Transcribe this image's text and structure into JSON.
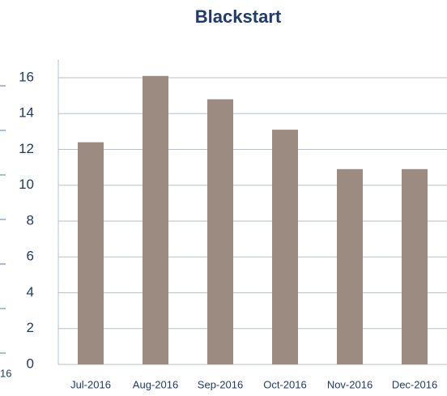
{
  "chart_data": {
    "type": "bar",
    "title": "Blackstart",
    "categories": [
      "Jul-2016",
      "Aug-2016",
      "Sep-2016",
      "Oct-2016",
      "Nov-2016",
      "Dec-2016"
    ],
    "values": [
      12.4,
      16.1,
      14.8,
      13.1,
      10.9,
      10.9
    ],
    "color": "#9b8b80",
    "ylim": [
      0,
      17
    ],
    "yticks": [
      0,
      2,
      4,
      6,
      8,
      10,
      12,
      14,
      16
    ],
    "grid": true
  },
  "partial_label": "16"
}
